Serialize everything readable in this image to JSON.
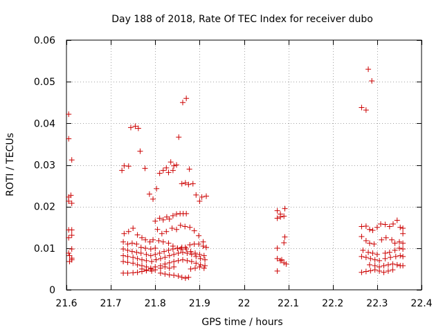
{
  "colors": {
    "marker": "#cc0000",
    "axis": "#000000",
    "grid": "#a0a0a0",
    "background": "#ffffff"
  },
  "chart_data": {
    "type": "scatter",
    "title": "Day 188 of 2018, Rate Of TEC Index for receiver dubo",
    "xlabel": "GPS time / hours",
    "ylabel": "ROTI / TECUs",
    "xlim": [
      21.6,
      22.4
    ],
    "ylim": [
      0,
      0.06
    ],
    "xticks": [
      21.6,
      21.7,
      21.8,
      21.9,
      22.0,
      22.1,
      22.2,
      22.3,
      22.4
    ],
    "xtick_labels": [
      "21.6",
      "21.7",
      "21.8",
      "21.9",
      "22",
      "22.1",
      "22.2",
      "22.3",
      "22.4"
    ],
    "yticks": [
      0,
      0.01,
      0.02,
      0.03,
      0.04,
      0.05,
      0.06
    ],
    "ytick_labels": [
      "0",
      "0.01",
      "0.02",
      "0.03",
      "0.04",
      "0.05",
      "0.06"
    ],
    "grid": true,
    "marker": "plus",
    "series": [
      {
        "name": "ROTI",
        "points": [
          [
            21.605,
            0.0422
          ],
          [
            21.605,
            0.0363
          ],
          [
            21.612,
            0.0312
          ],
          [
            21.605,
            0.0223
          ],
          [
            21.61,
            0.0227
          ],
          [
            21.612,
            0.0208
          ],
          [
            21.605,
            0.0213
          ],
          [
            21.605,
            0.0144
          ],
          [
            21.612,
            0.0144
          ],
          [
            21.605,
            0.0125
          ],
          [
            21.612,
            0.0131
          ],
          [
            21.612,
            0.0098
          ],
          [
            21.605,
            0.0088
          ],
          [
            21.607,
            0.0082
          ],
          [
            21.612,
            0.0076
          ],
          [
            21.607,
            0.0068
          ],
          [
            21.612,
            0.0072
          ],
          [
            21.755,
            0.0393
          ],
          [
            21.745,
            0.039
          ],
          [
            21.762,
            0.0388
          ],
          [
            21.73,
            0.0298
          ],
          [
            21.74,
            0.0297
          ],
          [
            21.725,
            0.0287
          ],
          [
            21.766,
            0.0333
          ],
          [
            21.777,
            0.0292
          ],
          [
            21.787,
            0.023
          ],
          [
            21.795,
            0.0218
          ],
          [
            21.803,
            0.0243
          ],
          [
            21.81,
            0.028
          ],
          [
            21.818,
            0.0287
          ],
          [
            21.825,
            0.0293
          ],
          [
            21.835,
            0.0307
          ],
          [
            21.842,
            0.0298
          ],
          [
            21.848,
            0.03
          ],
          [
            21.84,
            0.0287
          ],
          [
            21.83,
            0.0282
          ],
          [
            21.853,
            0.0367
          ],
          [
            21.862,
            0.045
          ],
          [
            21.87,
            0.046
          ],
          [
            21.877,
            0.029
          ],
          [
            21.86,
            0.0255
          ],
          [
            21.868,
            0.0257
          ],
          [
            21.875,
            0.0253
          ],
          [
            21.885,
            0.0255
          ],
          [
            21.892,
            0.0228
          ],
          [
            21.9,
            0.0213
          ],
          [
            21.905,
            0.0223
          ],
          [
            21.915,
            0.0225
          ],
          [
            21.8,
            0.0165
          ],
          [
            21.81,
            0.0172
          ],
          [
            21.818,
            0.0168
          ],
          [
            21.826,
            0.0175
          ],
          [
            21.832,
            0.017
          ],
          [
            21.84,
            0.0178
          ],
          [
            21.848,
            0.0182
          ],
          [
            21.856,
            0.0183
          ],
          [
            21.863,
            0.0183
          ],
          [
            21.87,
            0.0183
          ],
          [
            21.73,
            0.0135
          ],
          [
            21.74,
            0.014
          ],
          [
            21.75,
            0.0148
          ],
          [
            21.76,
            0.0132
          ],
          [
            21.77,
            0.0125
          ],
          [
            21.778,
            0.012
          ],
          [
            21.788,
            0.0115
          ],
          [
            21.795,
            0.012
          ],
          [
            21.805,
            0.0145
          ],
          [
            21.815,
            0.0135
          ],
          [
            21.825,
            0.014
          ],
          [
            21.838,
            0.0148
          ],
          [
            21.848,
            0.0145
          ],
          [
            21.857,
            0.0155
          ],
          [
            21.867,
            0.0152
          ],
          [
            21.878,
            0.015
          ],
          [
            21.888,
            0.0142
          ],
          [
            21.898,
            0.013
          ],
          [
            21.908,
            0.0115
          ],
          [
            21.728,
            0.0115
          ],
          [
            21.738,
            0.011
          ],
          [
            21.748,
            0.0112
          ],
          [
            21.758,
            0.011
          ],
          [
            21.768,
            0.0102
          ],
          [
            21.778,
            0.01
          ],
          [
            21.79,
            0.0098
          ],
          [
            21.8,
            0.01
          ],
          [
            21.808,
            0.0118
          ],
          [
            21.818,
            0.0115
          ],
          [
            21.83,
            0.0112
          ],
          [
            21.84,
            0.0105
          ],
          [
            21.85,
            0.01
          ],
          [
            21.858,
            0.0098
          ],
          [
            21.868,
            0.0102
          ],
          [
            21.878,
            0.0108
          ],
          [
            21.888,
            0.011
          ],
          [
            21.898,
            0.011
          ],
          [
            21.908,
            0.0105
          ],
          [
            21.915,
            0.0102
          ],
          [
            21.728,
            0.0098
          ],
          [
            21.738,
            0.0095
          ],
          [
            21.748,
            0.0092
          ],
          [
            21.758,
            0.009
          ],
          [
            21.768,
            0.0088
          ],
          [
            21.78,
            0.0085
          ],
          [
            21.79,
            0.0082
          ],
          [
            21.8,
            0.0085
          ],
          [
            21.81,
            0.0088
          ],
          [
            21.82,
            0.0092
          ],
          [
            21.83,
            0.0095
          ],
          [
            21.84,
            0.0098
          ],
          [
            21.85,
            0.01
          ],
          [
            21.86,
            0.0102
          ],
          [
            21.87,
            0.0098
          ],
          [
            21.88,
            0.0092
          ],
          [
            21.89,
            0.0088
          ],
          [
            21.9,
            0.0085
          ],
          [
            21.91,
            0.0082
          ],
          [
            21.728,
            0.0082
          ],
          [
            21.738,
            0.008
          ],
          [
            21.75,
            0.0078
          ],
          [
            21.76,
            0.0075
          ],
          [
            21.77,
            0.0072
          ],
          [
            21.78,
            0.007
          ],
          [
            21.792,
            0.0068
          ],
          [
            21.802,
            0.0072
          ],
          [
            21.812,
            0.0075
          ],
          [
            21.822,
            0.0078
          ],
          [
            21.832,
            0.0082
          ],
          [
            21.842,
            0.0085
          ],
          [
            21.852,
            0.0088
          ],
          [
            21.862,
            0.009
          ],
          [
            21.872,
            0.0088
          ],
          [
            21.882,
            0.0085
          ],
          [
            21.892,
            0.008
          ],
          [
            21.902,
            0.0075
          ],
          [
            21.912,
            0.0072
          ],
          [
            21.728,
            0.0068
          ],
          [
            21.738,
            0.0066
          ],
          [
            21.75,
            0.0064
          ],
          [
            21.76,
            0.006
          ],
          [
            21.77,
            0.0058
          ],
          [
            21.78,
            0.0055
          ],
          [
            21.79,
            0.0052
          ],
          [
            21.8,
            0.0055
          ],
          [
            21.812,
            0.0058
          ],
          [
            21.822,
            0.0062
          ],
          [
            21.832,
            0.0065
          ],
          [
            21.842,
            0.0068
          ],
          [
            21.852,
            0.007
          ],
          [
            21.862,
            0.0072
          ],
          [
            21.872,
            0.007
          ],
          [
            21.882,
            0.0068
          ],
          [
            21.892,
            0.0064
          ],
          [
            21.902,
            0.006
          ],
          [
            21.912,
            0.0058
          ],
          [
            21.77,
            0.005
          ],
          [
            21.78,
            0.0048
          ],
          [
            21.79,
            0.005
          ],
          [
            21.8,
            0.0048
          ],
          [
            21.812,
            0.0052
          ],
          [
            21.822,
            0.0055
          ],
          [
            21.832,
            0.0052
          ],
          [
            21.842,
            0.0055
          ],
          [
            21.88,
            0.005
          ],
          [
            21.89,
            0.0052
          ],
          [
            21.9,
            0.0055
          ],
          [
            21.91,
            0.0052
          ],
          [
            21.728,
            0.004
          ],
          [
            21.738,
            0.004
          ],
          [
            21.75,
            0.0041
          ],
          [
            21.76,
            0.0042
          ],
          [
            21.77,
            0.0044
          ],
          [
            21.78,
            0.0046
          ],
          [
            21.792,
            0.0045
          ],
          [
            21.812,
            0.004
          ],
          [
            21.822,
            0.0038
          ],
          [
            21.832,
            0.0036
          ],
          [
            21.842,
            0.0035
          ],
          [
            21.852,
            0.0033
          ],
          [
            21.86,
            0.003
          ],
          [
            21.868,
            0.0028
          ],
          [
            21.875,
            0.003
          ],
          [
            22.075,
            0.019
          ],
          [
            22.082,
            0.0182
          ],
          [
            22.075,
            0.0172
          ],
          [
            22.082,
            0.0175
          ],
          [
            22.09,
            0.0177
          ],
          [
            22.092,
            0.0195
          ],
          [
            22.092,
            0.0127
          ],
          [
            22.09,
            0.0113
          ],
          [
            22.075,
            0.01
          ],
          [
            22.075,
            0.0075
          ],
          [
            22.082,
            0.007
          ],
          [
            22.085,
            0.0072
          ],
          [
            22.09,
            0.0065
          ],
          [
            22.095,
            0.0062
          ],
          [
            22.075,
            0.0045
          ],
          [
            22.28,
            0.053
          ],
          [
            22.288,
            0.0502
          ],
          [
            22.265,
            0.0438
          ],
          [
            22.275,
            0.0432
          ],
          [
            22.265,
            0.0152
          ],
          [
            22.275,
            0.0153
          ],
          [
            22.283,
            0.0145
          ],
          [
            22.29,
            0.0143
          ],
          [
            22.3,
            0.015
          ],
          [
            22.308,
            0.0158
          ],
          [
            22.318,
            0.0157
          ],
          [
            22.328,
            0.0152
          ],
          [
            22.336,
            0.0158
          ],
          [
            22.345,
            0.0167
          ],
          [
            22.352,
            0.015
          ],
          [
            22.358,
            0.0148
          ],
          [
            22.358,
            0.0135
          ],
          [
            22.265,
            0.0128
          ],
          [
            22.275,
            0.0118
          ],
          [
            22.283,
            0.0112
          ],
          [
            22.293,
            0.011
          ],
          [
            22.31,
            0.012
          ],
          [
            22.32,
            0.0125
          ],
          [
            22.333,
            0.012
          ],
          [
            22.34,
            0.0112
          ],
          [
            22.35,
            0.0115
          ],
          [
            22.358,
            0.0112
          ],
          [
            22.268,
            0.0095
          ],
          [
            22.28,
            0.009
          ],
          [
            22.29,
            0.0088
          ],
          [
            22.3,
            0.0085
          ],
          [
            22.318,
            0.0088
          ],
          [
            22.328,
            0.009
          ],
          [
            22.34,
            0.0095
          ],
          [
            22.35,
            0.01
          ],
          [
            22.358,
            0.0098
          ],
          [
            22.265,
            0.008
          ],
          [
            22.275,
            0.0078
          ],
          [
            22.285,
            0.0075
          ],
          [
            22.295,
            0.0072
          ],
          [
            22.305,
            0.007
          ],
          [
            22.318,
            0.0075
          ],
          [
            22.33,
            0.0078
          ],
          [
            22.342,
            0.008
          ],
          [
            22.352,
            0.0082
          ],
          [
            22.358,
            0.008
          ],
          [
            22.283,
            0.006
          ],
          [
            22.295,
            0.0058
          ],
          [
            22.305,
            0.0055
          ],
          [
            22.315,
            0.0058
          ],
          [
            22.325,
            0.006
          ],
          [
            22.335,
            0.0062
          ],
          [
            22.345,
            0.006
          ],
          [
            22.352,
            0.0058
          ],
          [
            22.358,
            0.0058
          ],
          [
            22.265,
            0.0042
          ],
          [
            22.275,
            0.0044
          ],
          [
            22.285,
            0.0046
          ],
          [
            22.295,
            0.0048
          ],
          [
            22.305,
            0.0045
          ],
          [
            22.315,
            0.0042
          ],
          [
            22.325,
            0.0045
          ],
          [
            22.335,
            0.0048
          ]
        ]
      }
    ]
  }
}
